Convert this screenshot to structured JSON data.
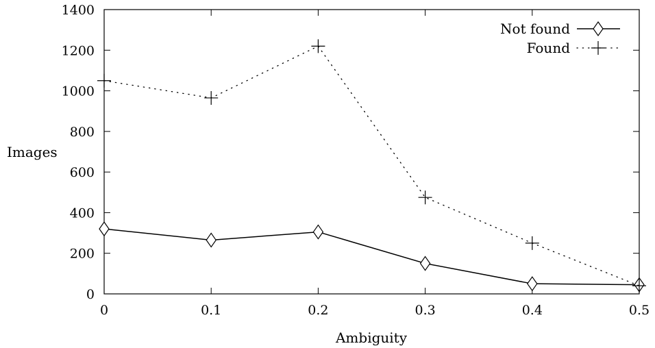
{
  "chart_data": {
    "type": "line",
    "title": "",
    "xlabel": "Ambiguity",
    "ylabel": "Images",
    "xlim": [
      0,
      0.5
    ],
    "ylim": [
      0,
      1400
    ],
    "x_ticks": [
      "0",
      "0.1",
      "0.2",
      "0.3",
      "0.4",
      "0.5"
    ],
    "y_ticks": [
      "0",
      "200",
      "400",
      "600",
      "800",
      "1000",
      "1200",
      "1400"
    ],
    "x": [
      0,
      0.1,
      0.2,
      0.3,
      0.4,
      0.5
    ],
    "grid": false,
    "legend_position": "top-right",
    "series": [
      {
        "name": "Not found",
        "marker": "diamond",
        "line_style": "solid",
        "color": "#000000",
        "values": [
          320,
          265,
          305,
          150,
          50,
          45
        ]
      },
      {
        "name": "Found",
        "marker": "plus",
        "line_style": "dotted",
        "color": "#000000",
        "values": [
          1050,
          965,
          1220,
          475,
          250,
          40
        ]
      }
    ]
  }
}
